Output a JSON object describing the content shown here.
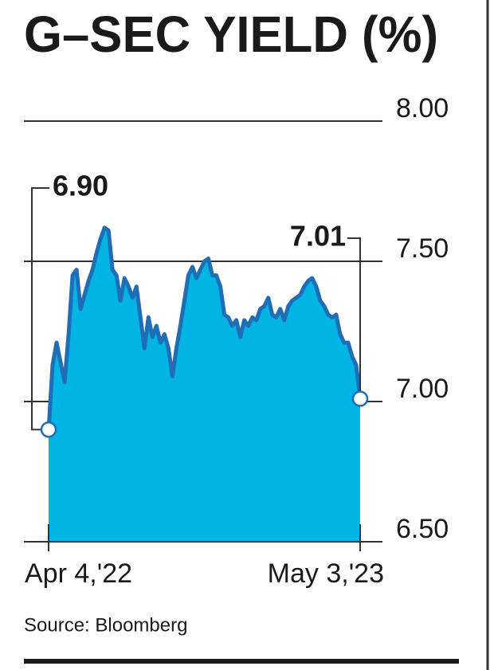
{
  "chart_data": {
    "type": "area",
    "title": "G–SEC YIELD (%)",
    "source": "Source: Bloomberg",
    "categories": [
      "Apr 4,'22",
      null,
      null,
      null,
      null,
      null,
      null,
      null,
      null,
      null,
      null,
      null,
      null,
      null,
      null,
      null,
      null,
      null,
      null,
      null,
      null,
      null,
      null,
      null,
      null,
      null,
      null,
      null,
      null,
      null,
      null,
      null,
      null,
      null,
      null,
      null,
      null,
      null,
      null,
      null,
      null,
      null,
      null,
      null,
      null,
      null,
      null,
      null,
      null,
      null,
      null,
      null,
      null,
      null,
      null,
      null,
      null,
      null,
      null,
      null,
      null,
      null,
      null,
      null,
      null,
      null,
      null,
      null,
      null,
      null,
      null,
      null,
      null,
      null,
      null,
      null,
      null,
      null,
      "May 3,'23"
    ],
    "values": [
      6.9,
      7.13,
      7.21,
      7.14,
      7.07,
      7.24,
      7.45,
      7.47,
      7.33,
      7.38,
      7.43,
      7.47,
      7.53,
      7.58,
      7.62,
      7.61,
      7.47,
      7.45,
      7.36,
      7.44,
      7.41,
      7.37,
      7.41,
      7.3,
      7.19,
      7.3,
      7.23,
      7.27,
      7.21,
      7.24,
      7.19,
      7.09,
      7.19,
      7.27,
      7.36,
      7.45,
      7.48,
      7.44,
      7.47,
      7.5,
      7.51,
      7.45,
      7.45,
      7.41,
      7.31,
      7.3,
      7.27,
      7.29,
      7.23,
      7.29,
      7.27,
      7.3,
      7.29,
      7.33,
      7.34,
      7.37,
      7.31,
      7.3,
      7.33,
      7.29,
      7.34,
      7.36,
      7.37,
      7.38,
      7.41,
      7.43,
      7.44,
      7.41,
      7.36,
      7.34,
      7.31,
      7.3,
      7.31,
      7.24,
      7.21,
      7.21,
      7.16,
      7.13,
      7.01
    ],
    "value_labels": [
      "6.90",
      null,
      null,
      null,
      null,
      null,
      null,
      null,
      null,
      null,
      null,
      null,
      null,
      null,
      null,
      null,
      null,
      null,
      null,
      null,
      null,
      null,
      null,
      null,
      null,
      null,
      null,
      null,
      null,
      null,
      null,
      null,
      null,
      null,
      null,
      null,
      null,
      null,
      null,
      null,
      null,
      null,
      null,
      null,
      null,
      null,
      null,
      null,
      null,
      null,
      null,
      null,
      null,
      null,
      null,
      null,
      null,
      null,
      null,
      null,
      null,
      null,
      null,
      null,
      null,
      null,
      null,
      null,
      null,
      null,
      null,
      null,
      null,
      null,
      null,
      null,
      null,
      null,
      "7.01"
    ],
    "color": "#00b4e6",
    "line_color": "#1f6db4",
    "ylim": [
      6.5,
      8.0
    ],
    "yticks": [
      {
        "value": 6.5,
        "label": "6.50"
      },
      {
        "value": 7,
        "label": "7.00"
      },
      {
        "value": 7.5,
        "label": "7.50"
      },
      {
        "value": 8,
        "label": "8.00"
      }
    ],
    "grid": true
  }
}
